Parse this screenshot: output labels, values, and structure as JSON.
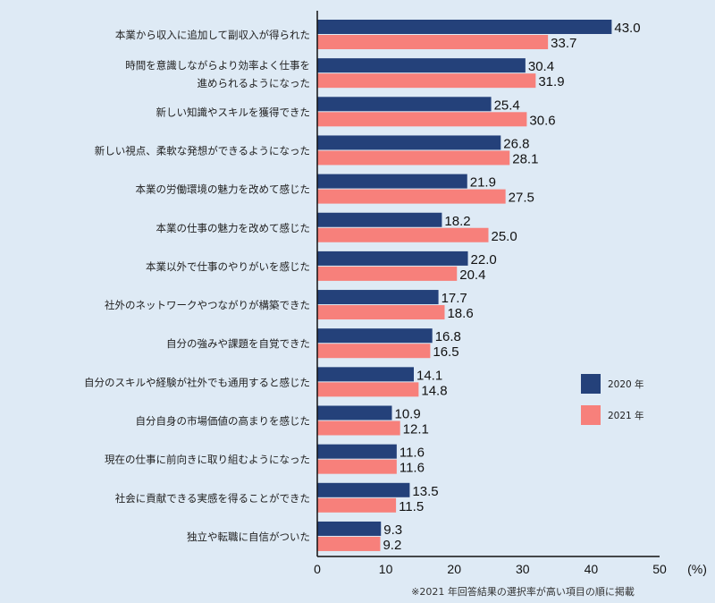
{
  "chart_data": {
    "type": "bar",
    "orientation": "horizontal",
    "categories": [
      [
        "本業から収入に追加して副収入が得られた"
      ],
      [
        "時間を意識しながらより効率よく仕事を",
        "進められるようになった"
      ],
      [
        "新しい知識やスキルを獲得できた"
      ],
      [
        "新しい視点、柔軟な発想ができるようになった"
      ],
      [
        "本業の労働環境の魅力を改めて感じた"
      ],
      [
        "本業の仕事の魅力を改めて感じた"
      ],
      [
        "本業以外で仕事のやりがいを感じた"
      ],
      [
        "社外のネットワークやつながりが構築できた"
      ],
      [
        "自分の強みや課題を自覚できた"
      ],
      [
        "自分のスキルや経験が社外でも通用すると感じた"
      ],
      [
        "自分自身の市場価値の高まりを感じた"
      ],
      [
        "現在の仕事に前向きに取り組むようになった"
      ],
      [
        "社会に貢献できる実感を得ることができた"
      ],
      [
        "独立や転職に自信がついた"
      ]
    ],
    "series": [
      {
        "name": "2020 年",
        "color": "#24417a",
        "values": [
          43.0,
          30.4,
          25.4,
          26.8,
          21.9,
          18.2,
          22.0,
          17.7,
          16.8,
          14.1,
          10.9,
          11.6,
          13.5,
          9.3
        ]
      },
      {
        "name": "2021 年",
        "color": "#f7807b",
        "values": [
          33.7,
          31.9,
          30.6,
          28.1,
          27.5,
          25.0,
          20.4,
          18.6,
          16.5,
          14.8,
          12.1,
          11.6,
          11.5,
          9.2
        ]
      }
    ],
    "xlim": [
      0,
      50
    ],
    "xticks": [
      "0",
      "10",
      "20",
      "30",
      "40",
      "50"
    ],
    "xunit": "(%)",
    "grid": false,
    "legend_placement": "right",
    "note": "※2021 年回答結果の選択率が高い項目の順に掲載"
  }
}
